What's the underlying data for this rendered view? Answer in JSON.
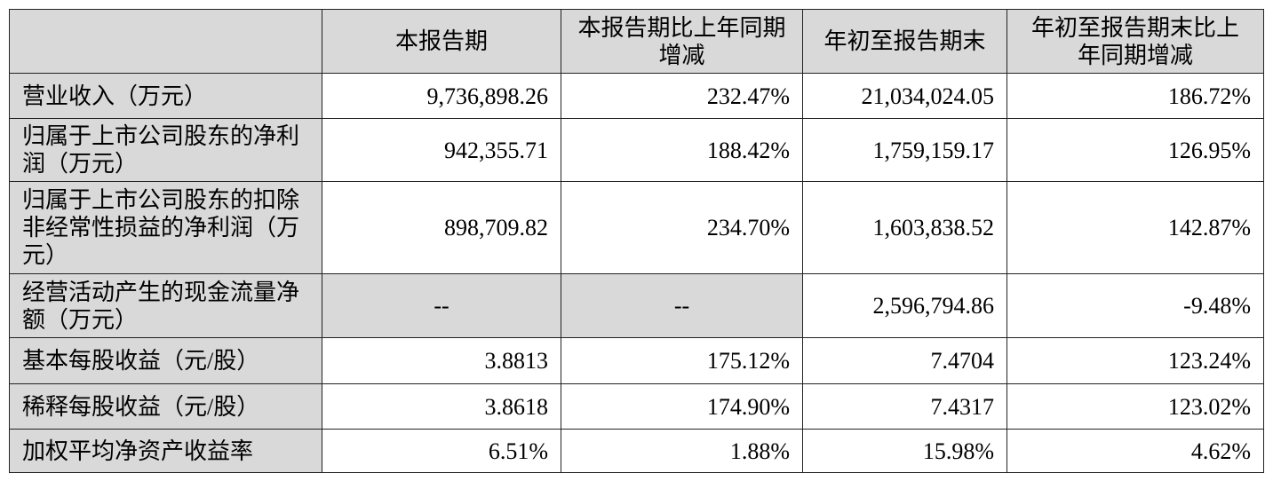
{
  "table": {
    "header": [
      "本报告期",
      "本报告期比上年同期增减",
      "年初至报告期末",
      "年初至报告期末比上年同期增减"
    ],
    "rows": [
      [
        "营业收入（万元）",
        "9,736,898.26",
        "232.47%",
        "21,034,024.05",
        "186.72%"
      ],
      [
        "归属于上市公司股东的净利润（万元）",
        "942,355.71",
        "188.42%",
        "1,759,159.17",
        "126.95%"
      ],
      [
        "归属于上市公司股东的扣除非经常性损益的净利润（万元）",
        "898,709.82",
        "234.70%",
        "1,603,838.52",
        "142.87%"
      ],
      [
        "经营活动产生的现金流量净额（万元）",
        "--",
        "--",
        "2,596,794.86",
        "-9.48%"
      ],
      [
        "基本每股收益（元/股）",
        "3.8813",
        "175.12%",
        "7.4704",
        "123.24%"
      ],
      [
        "稀释每股收益（元/股）",
        "3.8618",
        "174.90%",
        "7.4317",
        "123.02%"
      ],
      [
        "加权平均净资产收益率",
        "6.51%",
        "1.88%",
        "15.98%",
        "4.62%"
      ]
    ]
  }
}
